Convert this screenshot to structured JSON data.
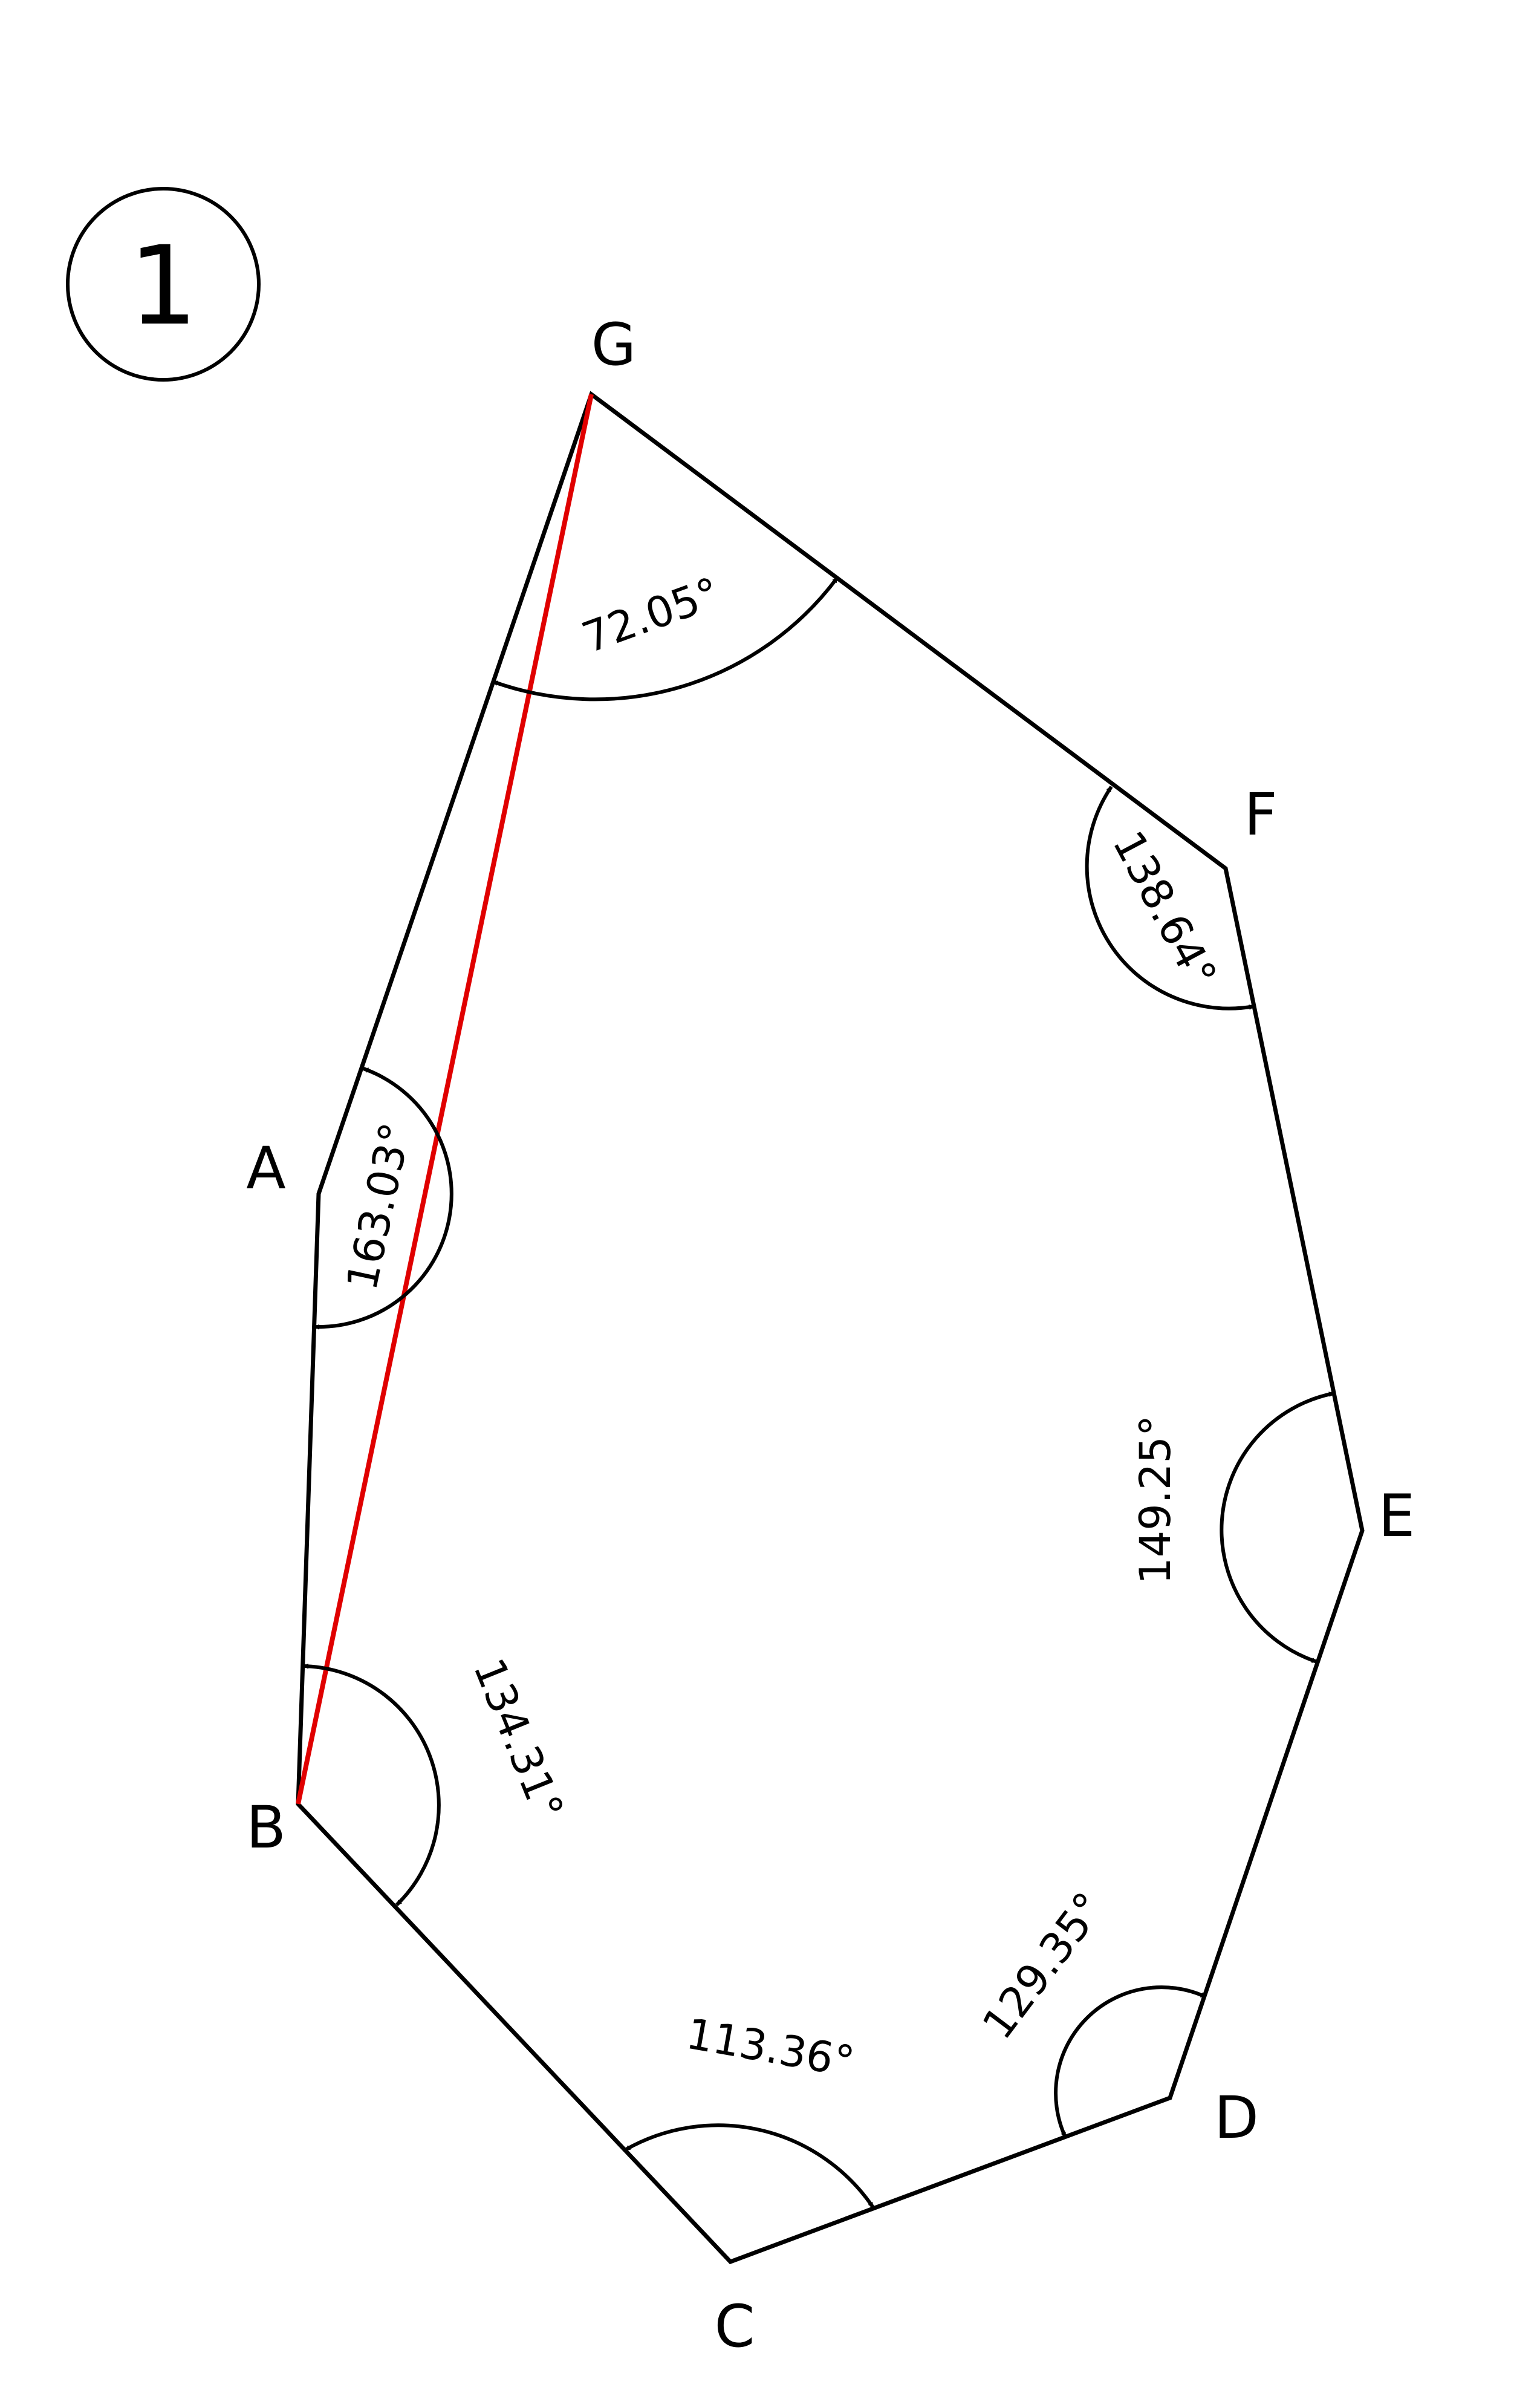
{
  "figure": {
    "number": "1",
    "stroke_color": "#000000",
    "highlight_color": "#e00000",
    "background": "#ffffff"
  },
  "vertices": {
    "A": "A",
    "B": "B",
    "C": "C",
    "D": "D",
    "E": "E",
    "F": "F",
    "G": "G"
  },
  "angles": {
    "G": "72.05°",
    "F": "138.64°",
    "A": "163.03°",
    "E": "149.25°",
    "B": "134.31°",
    "C": "113.36°",
    "D": "129.35°"
  },
  "highlighted_segment": [
    "G",
    "B"
  ]
}
